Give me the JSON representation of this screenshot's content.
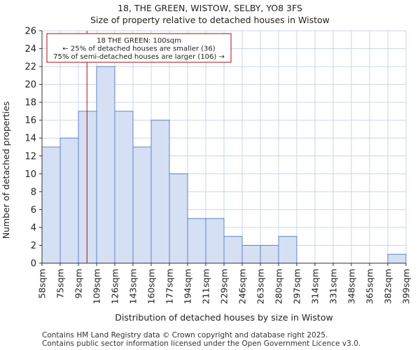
{
  "colors": {
    "bar_fill": "#d6e0f4",
    "bar_stroke": "#5e83c3",
    "grid": "#c9d6ea",
    "marker": "#a31212",
    "annotation_border": "#a31212",
    "text": "#222222"
  },
  "header": {
    "title": "18, THE GREEN, WISTOW, SELBY, YO8 3FS",
    "subtitle": "Size of property relative to detached houses in Wistow"
  },
  "chart_data": {
    "type": "bar",
    "title": "18, THE GREEN, WISTOW, SELBY, YO8 3FS",
    "subtitle": "Size of property relative to detached houses in Wistow",
    "xlabel": "Distribution of detached houses by size in Wistow",
    "ylabel": "Number of detached properties",
    "bin_edges": [
      "58sqm",
      "75sqm",
      "92sqm",
      "109sqm",
      "126sqm",
      "143sqm",
      "160sqm",
      "177sqm",
      "194sqm",
      "211sqm",
      "229sqm",
      "246sqm",
      "263sqm",
      "280sqm",
      "297sqm",
      "314sqm",
      "331sqm",
      "348sqm",
      "365sqm",
      "382sqm",
      "399sqm"
    ],
    "values": [
      13,
      14,
      17,
      22,
      17,
      13,
      16,
      10,
      5,
      5,
      3,
      2,
      2,
      3,
      0,
      0,
      0,
      0,
      0,
      1
    ],
    "ylim": [
      0,
      26
    ],
    "yticks": [
      0,
      2,
      4,
      6,
      8,
      10,
      12,
      14,
      16,
      18,
      20,
      22,
      24,
      26
    ],
    "grid": true,
    "marker": {
      "value_sqm": 100,
      "label": "18 THE GREEN: 100sqm"
    },
    "annotation": [
      "18 THE GREEN: 100sqm",
      "← 25% of detached houses are smaller (36)",
      "75% of semi-detached houses are larger (106) →"
    ]
  },
  "footer": {
    "line1": "Contains HM Land Registry data © Crown copyright and database right 2025.",
    "line2": "Contains public sector information licensed under the Open Government Licence v3.0."
  }
}
